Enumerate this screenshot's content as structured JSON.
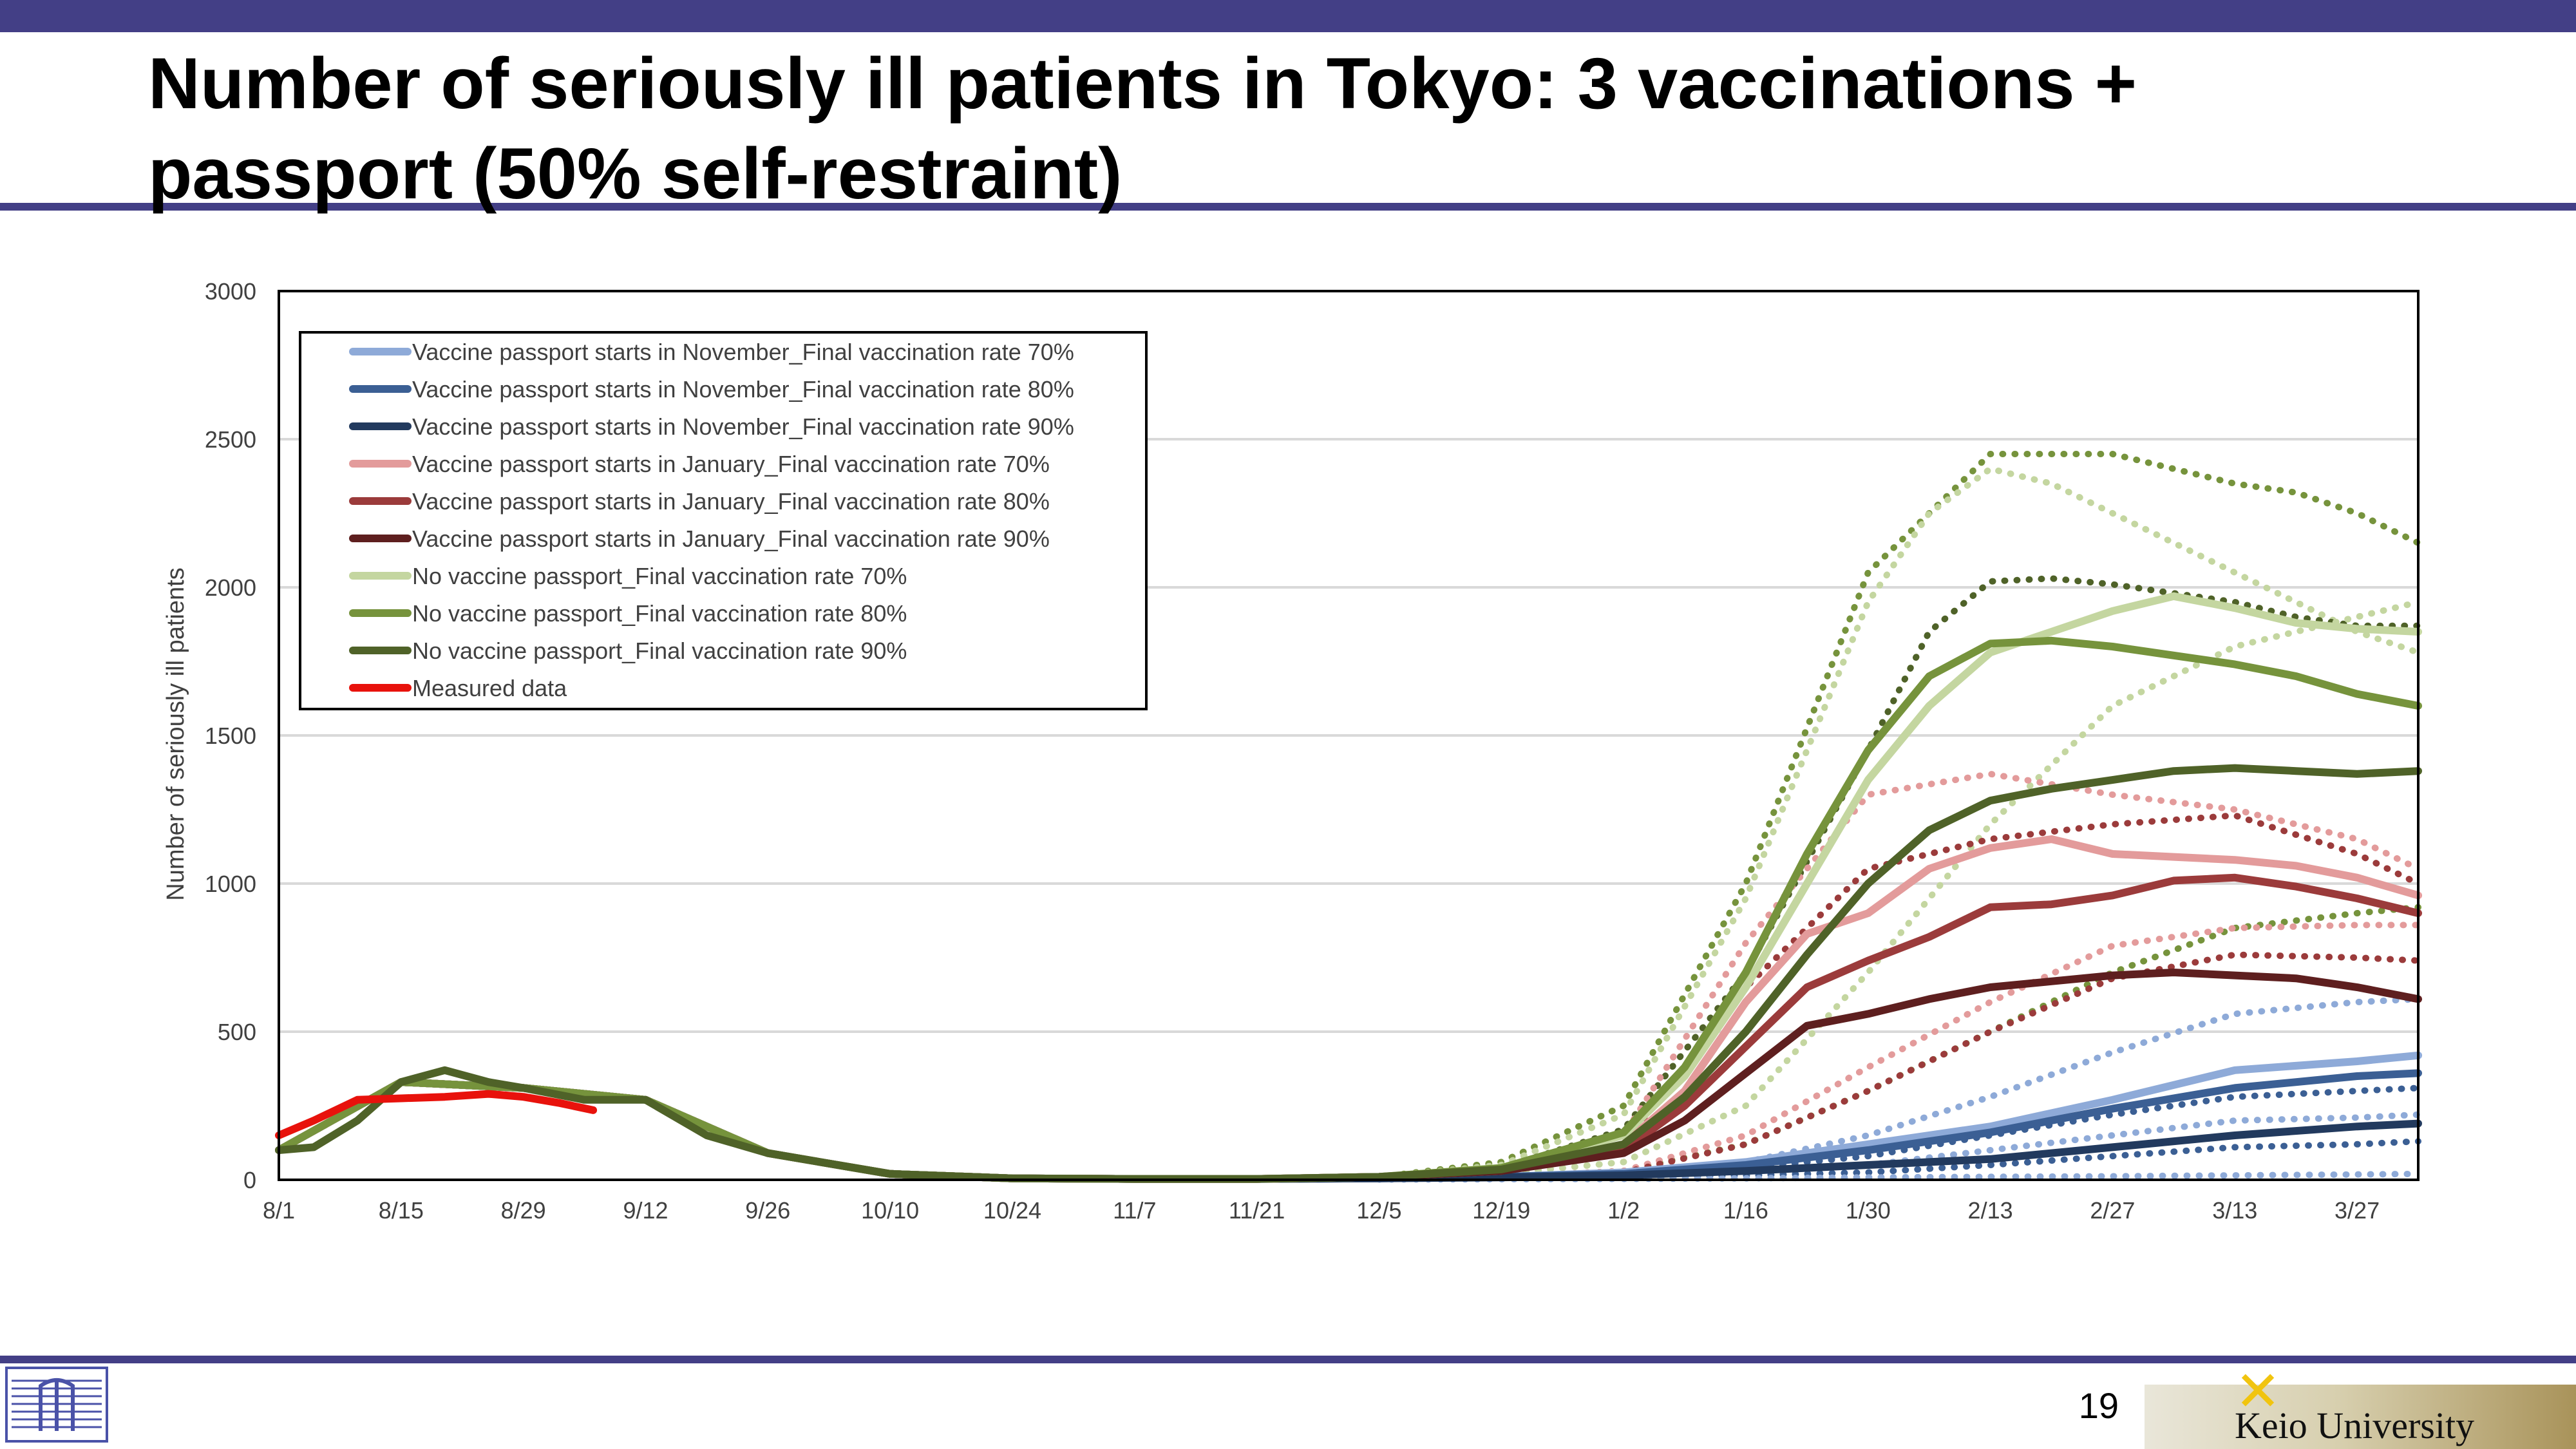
{
  "slide": {
    "title": "Number of seriously ill patients in Tokyo: 3 vaccinations + passport (50% self-restraint)",
    "page_number": "19",
    "footer_logo_text": "Keio University",
    "colors": {
      "band": "#433f86"
    }
  },
  "chart_data": {
    "type": "line",
    "title": "",
    "xlabel": "",
    "ylabel": "Number of seriously ill patients",
    "ylim": [
      0,
      3000
    ],
    "yticks": [
      0,
      500,
      1000,
      1500,
      2000,
      2500,
      3000
    ],
    "ytick_labels": [
      "0",
      "500",
      "1000",
      "1500",
      "2000",
      "2500",
      "3000"
    ],
    "xlim": [
      "8/1",
      "4/3"
    ],
    "xticks": [
      "8/1",
      "8/15",
      "8/29",
      "9/12",
      "9/26",
      "10/10",
      "10/24",
      "11/7",
      "11/21",
      "12/5",
      "12/19",
      "1/2",
      "1/16",
      "1/30",
      "2/13",
      "2/27",
      "3/13",
      "3/27"
    ],
    "grid": true,
    "legend_position": "top-left",
    "series": [
      {
        "name": "Vaccine passport starts in November_Final vaccination rate 70%",
        "color": "#8eaad8",
        "style": "solid",
        "x": [
          "8/1",
          "8/15",
          "8/29",
          "9/12",
          "9/26",
          "10/10",
          "10/24",
          "11/7",
          "11/21",
          "12/5",
          "12/19",
          "1/2",
          "1/16",
          "1/30",
          "2/13",
          "2/27",
          "3/13",
          "3/27",
          "4/3"
        ],
        "y": [
          100,
          330,
          310,
          270,
          90,
          20,
          5,
          3,
          3,
          5,
          10,
          25,
          60,
          120,
          180,
          270,
          370,
          400,
          420
        ]
      },
      {
        "name": "Vaccine passport starts in November_Final vaccination rate 80%",
        "color": "#3b5f94",
        "style": "solid",
        "x": [
          "8/1",
          "8/15",
          "8/29",
          "9/12",
          "9/26",
          "10/10",
          "10/24",
          "11/7",
          "11/21",
          "12/5",
          "12/19",
          "1/2",
          "1/16",
          "1/30",
          "2/13",
          "2/27",
          "3/13",
          "3/27",
          "4/3"
        ],
        "y": [
          100,
          330,
          310,
          270,
          90,
          20,
          5,
          3,
          3,
          5,
          10,
          20,
          50,
          100,
          160,
          240,
          310,
          350,
          360
        ]
      },
      {
        "name": "Vaccine passport starts in November_Final vaccination rate 90%",
        "color": "#223a5e",
        "style": "solid",
        "x": [
          "8/1",
          "8/15",
          "8/29",
          "9/12",
          "9/26",
          "10/10",
          "10/24",
          "11/7",
          "11/21",
          "12/5",
          "12/19",
          "1/2",
          "1/16",
          "1/30",
          "2/13",
          "2/27",
          "3/13",
          "3/27",
          "4/3"
        ],
        "y": [
          100,
          330,
          310,
          270,
          90,
          20,
          5,
          3,
          3,
          5,
          8,
          15,
          30,
          50,
          70,
          110,
          150,
          180,
          190
        ]
      },
      {
        "name": "Vaccine passport starts in January_Final vaccination rate 70%",
        "color": "#e39b9b",
        "style": "solid",
        "x": [
          "8/1",
          "8/15",
          "8/29",
          "9/12",
          "9/26",
          "10/10",
          "10/24",
          "11/7",
          "11/21",
          "12/5",
          "12/19",
          "1/2",
          "1/9",
          "1/16",
          "1/23",
          "1/30",
          "2/6",
          "2/13",
          "2/20",
          "2/27",
          "3/6",
          "3/13",
          "3/20",
          "3/27",
          "4/3"
        ],
        "y": [
          100,
          330,
          310,
          270,
          90,
          20,
          5,
          3,
          3,
          10,
          30,
          120,
          300,
          600,
          830,
          900,
          1050,
          1120,
          1150,
          1100,
          1090,
          1080,
          1060,
          1020,
          960
        ]
      },
      {
        "name": "Vaccine passport starts in January_Final vaccination rate 80%",
        "color": "#9b3b3b",
        "style": "solid",
        "x": [
          "8/1",
          "8/15",
          "8/29",
          "9/12",
          "9/26",
          "10/10",
          "10/24",
          "11/7",
          "11/21",
          "12/5",
          "12/19",
          "1/2",
          "1/9",
          "1/16",
          "1/23",
          "1/30",
          "2/6",
          "2/13",
          "2/20",
          "2/27",
          "3/6",
          "3/13",
          "3/20",
          "3/27",
          "4/3"
        ],
        "y": [
          100,
          330,
          310,
          270,
          90,
          20,
          5,
          3,
          3,
          10,
          30,
          100,
          250,
          450,
          650,
          740,
          820,
          920,
          930,
          960,
          1010,
          1020,
          990,
          950,
          900
        ]
      },
      {
        "name": "Vaccine passport starts in January_Final vaccination rate 90%",
        "color": "#5e1f1f",
        "style": "solid",
        "x": [
          "8/1",
          "8/15",
          "8/29",
          "9/12",
          "9/26",
          "10/10",
          "10/24",
          "11/7",
          "11/21",
          "12/5",
          "12/19",
          "1/2",
          "1/9",
          "1/16",
          "1/23",
          "1/30",
          "2/6",
          "2/13",
          "2/20",
          "2/27",
          "3/6",
          "3/13",
          "3/20",
          "3/27",
          "4/3"
        ],
        "y": [
          100,
          330,
          310,
          270,
          90,
          20,
          5,
          3,
          3,
          10,
          30,
          90,
          200,
          360,
          520,
          560,
          610,
          650,
          670,
          690,
          700,
          690,
          680,
          650,
          610
        ]
      },
      {
        "name": "No vaccine passport_Final vaccination rate 70%",
        "color": "#c4d6a0",
        "style": "solid",
        "x": [
          "8/1",
          "8/15",
          "8/29",
          "9/12",
          "9/26",
          "10/10",
          "10/24",
          "11/7",
          "11/21",
          "12/5",
          "12/19",
          "1/2",
          "1/9",
          "1/16",
          "1/23",
          "1/30",
          "2/6",
          "2/13",
          "2/20",
          "2/27",
          "3/6",
          "3/13",
          "3/20",
          "3/27",
          "4/3"
        ],
        "y": [
          100,
          330,
          310,
          270,
          90,
          20,
          5,
          3,
          3,
          10,
          40,
          150,
          350,
          650,
          1000,
          1350,
          1600,
          1780,
          1850,
          1920,
          1970,
          1930,
          1880,
          1860,
          1850
        ]
      },
      {
        "name": "No vaccine passport_Final vaccination rate 80%",
        "color": "#76933c",
        "style": "solid",
        "x": [
          "8/1",
          "8/15",
          "8/29",
          "9/12",
          "9/26",
          "10/10",
          "10/24",
          "11/7",
          "11/21",
          "12/5",
          "12/19",
          "1/2",
          "1/9",
          "1/16",
          "1/23",
          "1/30",
          "2/6",
          "2/13",
          "2/20",
          "2/27",
          "3/6",
          "3/13",
          "3/20",
          "3/27",
          "4/3"
        ],
        "y": [
          100,
          330,
          310,
          270,
          90,
          20,
          5,
          3,
          3,
          10,
          40,
          160,
          380,
          700,
          1100,
          1450,
          1700,
          1810,
          1820,
          1800,
          1770,
          1740,
          1700,
          1640,
          1600
        ]
      },
      {
        "name": "No vaccine passport_Final vaccination rate 90%",
        "color": "#4f6228",
        "style": "solid",
        "x": [
          "8/1",
          "8/5",
          "8/10",
          "8/15",
          "8/20",
          "8/25",
          "8/29",
          "9/5",
          "9/12",
          "9/19",
          "9/26",
          "10/10",
          "10/24",
          "11/7",
          "11/21",
          "12/5",
          "12/19",
          "1/2",
          "1/9",
          "1/16",
          "1/23",
          "1/30",
          "2/6",
          "2/13",
          "2/20",
          "2/27",
          "3/6",
          "3/13",
          "3/20",
          "3/27",
          "4/3"
        ],
        "y": [
          100,
          110,
          200,
          330,
          370,
          330,
          310,
          270,
          270,
          150,
          90,
          20,
          5,
          3,
          3,
          10,
          35,
          120,
          280,
          500,
          760,
          1000,
          1180,
          1280,
          1320,
          1350,
          1380,
          1390,
          1380,
          1370,
          1380
        ]
      },
      {
        "name": "Measured data",
        "color": "#e8120c",
        "style": "solid",
        "x": [
          "8/1",
          "8/5",
          "8/10",
          "8/15",
          "8/20",
          "8/25",
          "8/29",
          "9/2",
          "9/6"
        ],
        "y": [
          150,
          200,
          270,
          275,
          280,
          290,
          280,
          260,
          235
        ]
      }
    ],
    "unlabeled_dotted_series": [
      {
        "color": "#76933c",
        "x": [
          "12/5",
          "12/19",
          "1/2",
          "1/16",
          "1/30",
          "2/6",
          "2/13",
          "2/20",
          "2/27",
          "3/6",
          "3/13",
          "3/20",
          "3/27",
          "4/3"
        ],
        "y": [
          10,
          60,
          250,
          1000,
          2050,
          2250,
          2450,
          2450,
          2450,
          2400,
          2350,
          2320,
          2250,
          2150
        ]
      },
      {
        "color": "#c4d6a0",
        "x": [
          "12/5",
          "12/19",
          "1/2",
          "1/16",
          "1/30",
          "2/6",
          "2/13",
          "2/20",
          "2/27",
          "3/6",
          "3/13",
          "3/20",
          "3/27",
          "4/3"
        ],
        "y": [
          10,
          50,
          220,
          950,
          1950,
          2250,
          2400,
          2350,
          2250,
          2150,
          2050,
          1950,
          1850,
          1780
        ]
      },
      {
        "color": "#4f6228",
        "x": [
          "12/5",
          "12/19",
          "1/2",
          "1/16",
          "1/30",
          "2/6",
          "2/13",
          "2/20",
          "2/27",
          "3/6",
          "3/13",
          "3/20",
          "3/27",
          "4/3"
        ],
        "y": [
          10,
          40,
          170,
          700,
          1450,
          1850,
          2020,
          2030,
          2010,
          1980,
          1950,
          1900,
          1870,
          1870
        ]
      },
      {
        "color": "#c4d6a0",
        "x": [
          "12/5",
          "12/19",
          "1/2",
          "1/16",
          "1/30",
          "2/13",
          "2/27",
          "3/13",
          "3/27",
          "4/3"
        ],
        "y": [
          5,
          20,
          60,
          250,
          700,
          1200,
          1600,
          1800,
          1900,
          1950
        ]
      },
      {
        "color": "#e39b9b",
        "x": [
          "12/5",
          "12/19",
          "1/2",
          "1/16",
          "1/30",
          "2/13",
          "2/27",
          "3/13",
          "3/27",
          "4/3"
        ],
        "y": [
          5,
          25,
          150,
          800,
          1300,
          1370,
          1300,
          1250,
          1150,
          1050
        ]
      },
      {
        "color": "#9b3b3b",
        "x": [
          "12/5",
          "12/19",
          "1/2",
          "1/16",
          "1/30",
          "2/13",
          "2/27",
          "3/13",
          "3/27",
          "4/3"
        ],
        "y": [
          5,
          20,
          120,
          650,
          1050,
          1150,
          1200,
          1230,
          1100,
          1000
        ]
      },
      {
        "color": "#76933c",
        "x": [
          "12/5",
          "12/19",
          "1/2",
          "1/16",
          "1/30",
          "2/13",
          "2/27",
          "3/13",
          "3/27",
          "4/3"
        ],
        "y": [
          3,
          10,
          30,
          120,
          300,
          500,
          700,
          850,
          900,
          920
        ]
      },
      {
        "color": "#e39b9b",
        "x": [
          "12/5",
          "12/19",
          "1/2",
          "1/16",
          "1/30",
          "2/13",
          "2/27",
          "3/13",
          "3/27",
          "4/3"
        ],
        "y": [
          3,
          10,
          30,
          150,
          380,
          600,
          790,
          850,
          860,
          860
        ]
      },
      {
        "color": "#9b3b3b",
        "x": [
          "12/5",
          "12/19",
          "1/2",
          "1/16",
          "1/30",
          "2/13",
          "2/27",
          "3/13",
          "3/27",
          "4/3"
        ],
        "y": [
          3,
          8,
          25,
          120,
          300,
          500,
          680,
          760,
          750,
          740
        ]
      },
      {
        "color": "#8eaad8",
        "x": [
          "12/5",
          "12/19",
          "1/2",
          "1/16",
          "1/30",
          "2/13",
          "2/27",
          "3/13",
          "3/27",
          "4/3"
        ],
        "y": [
          3,
          8,
          20,
          60,
          150,
          280,
          430,
          560,
          600,
          610
        ]
      },
      {
        "color": "#3b5f94",
        "x": [
          "12/5",
          "12/19",
          "1/2",
          "1/16",
          "1/30",
          "2/13",
          "2/27",
          "3/13",
          "3/27",
          "4/3"
        ],
        "y": [
          3,
          6,
          15,
          40,
          80,
          150,
          220,
          280,
          300,
          310
        ]
      },
      {
        "color": "#8eaad8",
        "x": [
          "12/5",
          "12/19",
          "1/2",
          "1/16",
          "1/30",
          "2/13",
          "2/27",
          "3/13",
          "3/27",
          "4/3"
        ],
        "y": [
          3,
          5,
          10,
          25,
          50,
          100,
          150,
          200,
          210,
          220
        ]
      },
      {
        "color": "#3b5f94",
        "x": [
          "12/5",
          "12/19",
          "1/2",
          "1/16",
          "1/30",
          "2/13",
          "2/27",
          "3/13",
          "3/27",
          "4/3"
        ],
        "y": [
          2,
          4,
          8,
          15,
          25,
          50,
          80,
          110,
          120,
          130
        ]
      },
      {
        "color": "#8eaad8",
        "x": [
          "12/5",
          "12/19",
          "1/2",
          "1/16",
          "1/30",
          "2/13",
          "2/27",
          "3/13",
          "3/27",
          "4/3"
        ],
        "y": [
          1,
          2,
          3,
          5,
          8,
          10,
          12,
          15,
          18,
          20
        ]
      }
    ]
  }
}
